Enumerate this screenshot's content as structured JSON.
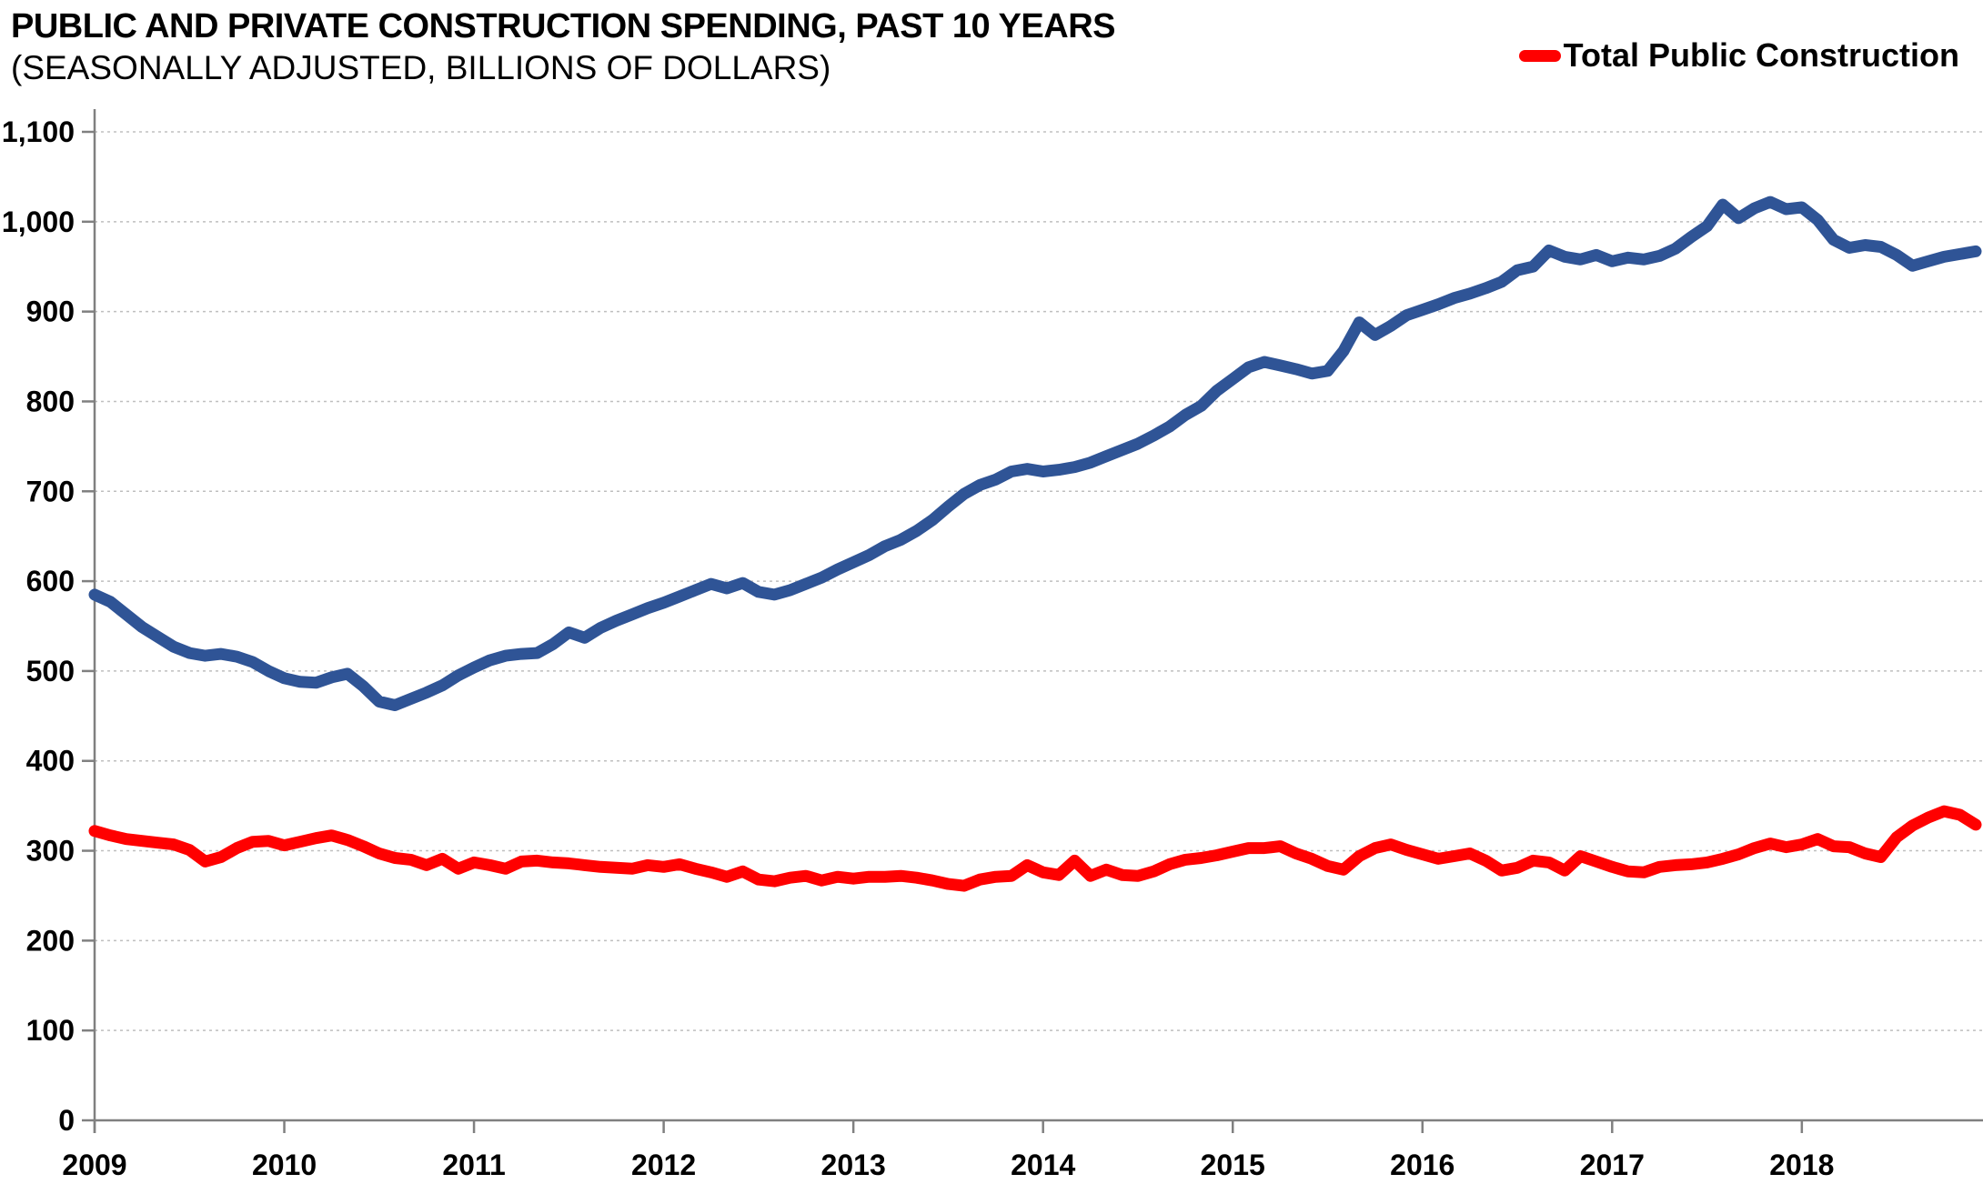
{
  "header": {
    "title": "PUBLIC AND PRIVATE CONSTRUCTION SPENDING, PAST 10 YEARS",
    "subtitle": "(SEASONALLY ADJUSTED, BILLIONS OF DOLLARS)"
  },
  "legend": {
    "position": "top-right",
    "items": [
      {
        "label": "Total Public Construction",
        "color": "#FF0000"
      }
    ]
  },
  "colors": {
    "public_line": "#FF0000",
    "blue_line": "#2F5496",
    "axis": "#808080",
    "gridline": "#BFBFBF",
    "text": "#000000",
    "background": "#FFFFFF"
  },
  "chart_data": {
    "type": "line",
    "title": "PUBLIC AND PRIVATE CONSTRUCTION SPENDING, PAST 10 YEARS",
    "subtitle": "(SEASONALLY ADJUSTED, BILLIONS OF DOLLARS)",
    "grid": true,
    "legend_position": "top-right",
    "x_axis": {
      "tick_labels": [
        "2009",
        "2010",
        "2011",
        "2012",
        "2013",
        "2014",
        "2015",
        "2016",
        "2017",
        "2018"
      ],
      "points_per_tick": 12,
      "frequency": "monthly"
    },
    "y_axis": {
      "min": 0,
      "max": 1100,
      "step": 100,
      "tick_labels": [
        "0",
        "100",
        "200",
        "300",
        "400",
        "500",
        "600",
        "700",
        "800",
        "900",
        "1,000",
        "1,100"
      ]
    },
    "series": [
      {
        "name": "Unlabeled (blue)",
        "in_legend": false,
        "color": "#2F5496",
        "values": [
          585,
          577,
          563,
          549,
          538,
          527,
          520,
          517,
          519,
          516,
          510,
          500,
          492,
          488,
          487,
          493,
          497,
          483,
          466,
          462,
          469,
          476,
          484,
          495,
          504,
          512,
          517,
          519,
          520,
          530,
          543,
          537,
          548,
          556,
          563,
          570,
          576,
          583,
          590,
          597,
          592,
          598,
          588,
          585,
          590,
          597,
          604,
          613,
          621,
          629,
          639,
          646,
          656,
          668,
          683,
          697,
          707,
          713,
          722,
          725,
          722,
          724,
          727,
          732,
          739,
          746,
          753,
          762,
          772,
          785,
          795,
          812,
          825,
          838,
          844,
          840,
          836,
          831,
          834,
          856,
          888,
          874,
          884,
          896,
          902,
          908,
          915,
          920,
          926,
          933,
          946,
          950,
          968,
          961,
          958,
          963,
          956,
          960,
          958,
          962,
          970,
          983,
          995,
          1019,
          1004,
          1015,
          1022,
          1014,
          1016,
          1002,
          980,
          971,
          974,
          972,
          963,
          951,
          956,
          961,
          964,
          967
        ]
      },
      {
        "name": "Total Public Construction",
        "in_legend": true,
        "color": "#FF0000",
        "values": [
          322,
          317,
          313,
          311,
          309,
          307,
          301,
          288,
          293,
          303,
          310,
          311,
          306,
          310,
          314,
          317,
          312,
          305,
          297,
          292,
          290,
          284,
          291,
          280,
          287,
          284,
          280,
          288,
          289,
          287,
          286,
          284,
          282,
          281,
          280,
          284,
          282,
          285,
          280,
          276,
          271,
          277,
          268,
          266,
          270,
          272,
          267,
          271,
          269,
          271,
          271,
          272,
          270,
          267,
          263,
          261,
          268,
          271,
          272,
          284,
          276,
          273,
          289,
          272,
          279,
          273,
          272,
          277,
          285,
          290,
          292,
          295,
          299,
          303,
          303,
          305,
          297,
          291,
          283,
          279,
          294,
          303,
          307,
          301,
          296,
          291,
          294,
          297,
          289,
          278,
          281,
          289,
          287,
          278,
          294,
          288,
          282,
          277,
          276,
          282,
          284,
          285,
          287,
          291,
          296,
          303,
          308,
          304,
          307,
          313,
          305,
          304,
          297,
          293,
          315,
          328,
          337,
          344,
          340,
          329
        ]
      }
    ]
  }
}
